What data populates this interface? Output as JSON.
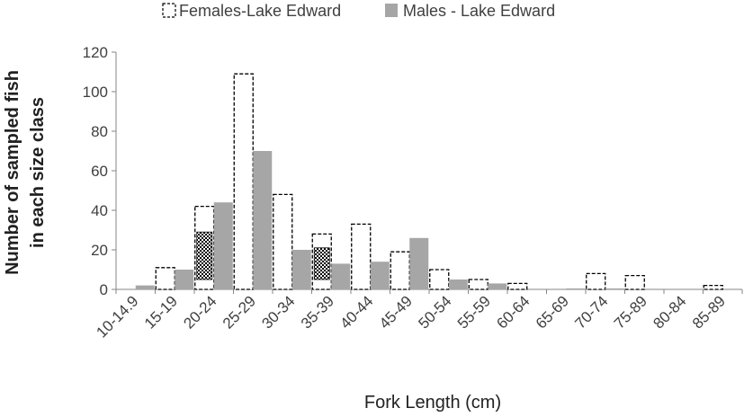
{
  "chart_data": {
    "type": "bar",
    "categories": [
      "10-14.9",
      "15-19",
      "20-24",
      "25-29",
      "30-34",
      "35-39",
      "40-44",
      "45-49",
      "50-54",
      "55-59",
      "60-64",
      "65-69",
      "70-74",
      "75-89",
      "80-84",
      "85-89"
    ],
    "series": [
      {
        "name": "Females-Lake Edward",
        "values": [
          0,
          11,
          42,
          109,
          48,
          28,
          33,
          19,
          10,
          5,
          3,
          0,
          8,
          7,
          0,
          2
        ]
      },
      {
        "name": "Males - Lake Edward",
        "values": [
          2,
          10,
          44,
          70,
          20,
          13,
          14,
          26,
          5,
          3,
          0,
          0.5,
          0.5,
          0,
          0,
          0
        ]
      }
    ],
    "ylim": [
      0,
      120
    ],
    "yticks": [
      0,
      20,
      40,
      60,
      80,
      100,
      120
    ],
    "xlabel": "Fork Length (cm)",
    "ylabel_lines": [
      "Number of sampled  fish",
      "in each size class"
    ],
    "legend": {
      "position": "top"
    },
    "colors": {
      "females_fill": "#ffffff",
      "females_border": "#000000",
      "males_fill": "#a6a6a6",
      "axis": "#868686"
    }
  }
}
